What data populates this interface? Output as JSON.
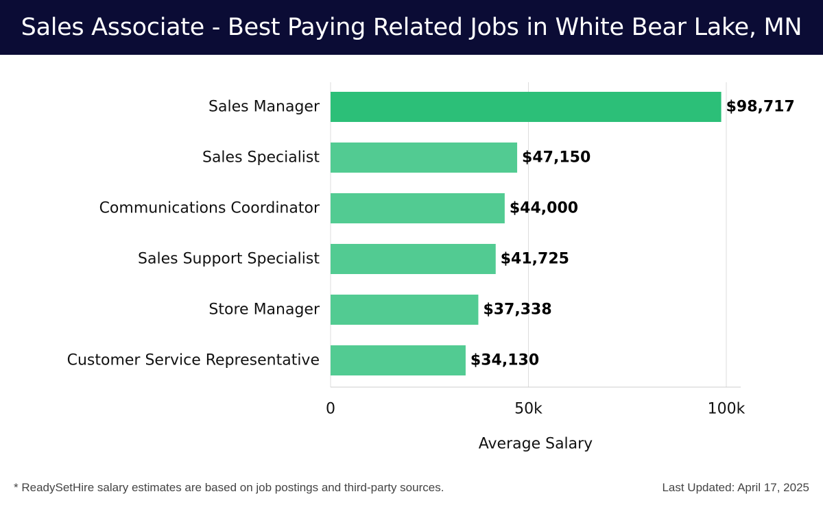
{
  "header": {
    "title": "Sales Associate - Best Paying Related Jobs in White Bear Lake, MN"
  },
  "chart_data": {
    "type": "bar",
    "orientation": "horizontal",
    "title": "Sales Associate - Best Paying Related Jobs in White Bear Lake, MN",
    "xlabel": "Average Salary",
    "ylabel": "",
    "categories": [
      "Sales Manager",
      "Sales Specialist",
      "Communications Coordinator",
      "Sales Support Specialist",
      "Store Manager",
      "Customer Service Representative"
    ],
    "values": [
      98717,
      47150,
      44000,
      41725,
      37338,
      34130
    ],
    "value_labels": [
      "$98,717",
      "$47,150",
      "$44,000",
      "$41,725",
      "$37,338",
      "$34,130"
    ],
    "xlim": [
      0,
      104000
    ],
    "xticks": [
      0,
      50000,
      100000
    ],
    "xtick_labels": [
      "0",
      "50k",
      "100k"
    ],
    "grid": true,
    "colors": {
      "highlight": "#2cbf78",
      "bar": "#52cb92",
      "grid": "#dddddd",
      "label": "#111111"
    }
  },
  "footer": {
    "note": "* ReadySetHire salary estimates are based on job postings and third-party sources.",
    "updated": "Last Updated: April 17, 2025"
  }
}
